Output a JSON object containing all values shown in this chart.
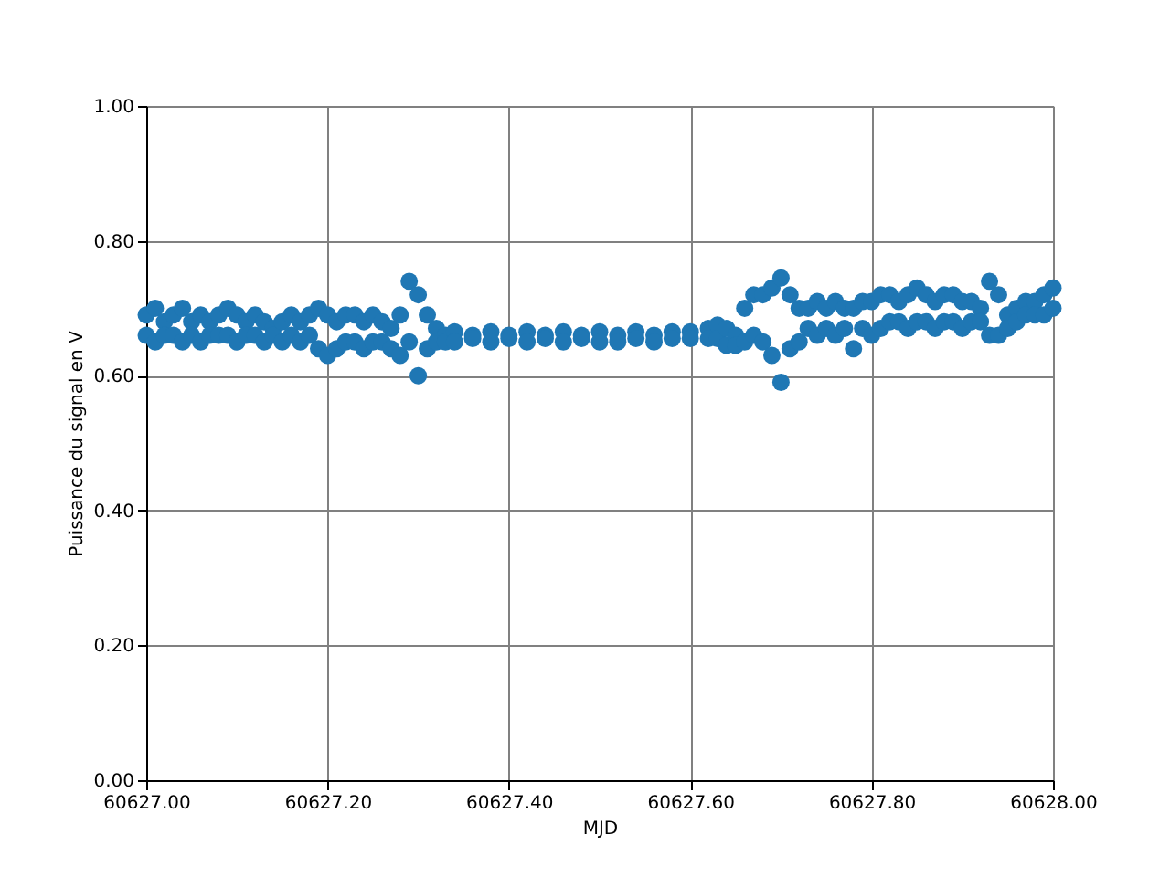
{
  "chart_data": {
    "type": "scatter",
    "xlabel": "MJD",
    "ylabel": "Puissance du signal en V",
    "marker": "circle",
    "grid": true,
    "xlim": [
      60627.0,
      60628.0
    ],
    "xticks": [
      {
        "value": 60627.0,
        "label": "60627.00"
      },
      {
        "value": 60627.2,
        "label": "60627.20"
      },
      {
        "value": 60627.4,
        "label": "60627.40"
      },
      {
        "value": 60627.6,
        "label": "60627.60"
      },
      {
        "value": 60627.8,
        "label": "60627.80"
      },
      {
        "value": 60628.0,
        "label": "60628.00"
      }
    ],
    "ylim": [
      0,
      1
    ],
    "yticks": [
      {
        "value": 0,
        "label": "0.00"
      },
      {
        "value": 0.2,
        "label": "0.20"
      },
      {
        "value": 0.4,
        "label": "0.40"
      },
      {
        "value": 0.6,
        "label": "0.60"
      },
      {
        "value": 0.8,
        "label": "0.80"
      },
      {
        "value": 1,
        "label": "1.00"
      }
    ],
    "series": [
      {
        "color": "#1f77b4",
        "x": [
          60627.0,
          60627.0,
          60627.01,
          60627.01,
          60627.02,
          60627.02,
          60627.03,
          60627.03,
          60627.04,
          60627.04,
          60627.05,
          60627.05,
          60627.06,
          60627.06,
          60627.07,
          60627.07,
          60627.08,
          60627.08,
          60627.09,
          60627.09,
          60627.1,
          60627.1,
          60627.11,
          60627.11,
          60627.12,
          60627.12,
          60627.13,
          60627.13,
          60627.14,
          60627.14,
          60627.15,
          60627.15,
          60627.16,
          60627.16,
          60627.17,
          60627.17,
          60627.18,
          60627.18,
          60627.19,
          60627.19,
          60627.2,
          60627.2,
          60627.21,
          60627.21,
          60627.22,
          60627.22,
          60627.23,
          60627.23,
          60627.24,
          60627.24,
          60627.25,
          60627.25,
          60627.26,
          60627.26,
          60627.27,
          60627.27,
          60627.28,
          60627.28,
          60627.29,
          60627.29,
          60627.3,
          60627.3,
          60627.31,
          60627.31,
          60627.32,
          60627.32,
          60627.33,
          60627.33,
          60627.34,
          60627.34,
          60627.36,
          60627.36,
          60627.38,
          60627.38,
          60627.4,
          60627.4,
          60627.42,
          60627.42,
          60627.44,
          60627.44,
          60627.46,
          60627.46,
          60627.48,
          60627.48,
          60627.5,
          60627.5,
          60627.52,
          60627.52,
          60627.54,
          60627.54,
          60627.56,
          60627.56,
          60627.58,
          60627.58,
          60627.6,
          60627.6,
          60627.62,
          60627.62,
          60627.63,
          60627.63,
          60627.64,
          60627.64,
          60627.65,
          60627.65,
          60627.66,
          60627.66,
          60627.67,
          60627.67,
          60627.68,
          60627.68,
          60627.69,
          60627.69,
          60627.7,
          60627.7,
          60627.71,
          60627.71,
          60627.72,
          60627.72,
          60627.73,
          60627.73,
          60627.74,
          60627.74,
          60627.75,
          60627.75,
          60627.76,
          60627.76,
          60627.77,
          60627.77,
          60627.78,
          60627.78,
          60627.79,
          60627.79,
          60627.8,
          60627.8,
          60627.81,
          60627.81,
          60627.82,
          60627.82,
          60627.83,
          60627.83,
          60627.84,
          60627.84,
          60627.85,
          60627.85,
          60627.86,
          60627.86,
          60627.87,
          60627.87,
          60627.88,
          60627.88,
          60627.89,
          60627.89,
          60627.9,
          60627.9,
          60627.91,
          60627.91,
          60627.92,
          60627.92,
          60627.93,
          60627.93,
          60627.94,
          60627.94,
          60627.95,
          60627.95,
          60627.96,
          60627.96,
          60627.97,
          60627.97,
          60627.98,
          60627.98,
          60627.99,
          60627.99,
          60628.0,
          60628.0
        ],
        "values": [
          0.69,
          0.66,
          0.7,
          0.65,
          0.68,
          0.66,
          0.69,
          0.66,
          0.7,
          0.65,
          0.68,
          0.66,
          0.69,
          0.65,
          0.68,
          0.66,
          0.69,
          0.66,
          0.7,
          0.66,
          0.69,
          0.65,
          0.68,
          0.66,
          0.69,
          0.66,
          0.68,
          0.65,
          0.67,
          0.66,
          0.68,
          0.65,
          0.69,
          0.66,
          0.68,
          0.65,
          0.69,
          0.66,
          0.7,
          0.64,
          0.69,
          0.63,
          0.68,
          0.64,
          0.69,
          0.65,
          0.69,
          0.65,
          0.68,
          0.64,
          0.69,
          0.65,
          0.68,
          0.65,
          0.67,
          0.64,
          0.69,
          0.63,
          0.74,
          0.65,
          0.72,
          0.6,
          0.69,
          0.64,
          0.67,
          0.65,
          0.66,
          0.65,
          0.665,
          0.65,
          0.66,
          0.655,
          0.665,
          0.65,
          0.66,
          0.655,
          0.665,
          0.65,
          0.66,
          0.655,
          0.665,
          0.65,
          0.66,
          0.655,
          0.665,
          0.65,
          0.66,
          0.65,
          0.665,
          0.655,
          0.66,
          0.65,
          0.665,
          0.655,
          0.665,
          0.655,
          0.67,
          0.655,
          0.675,
          0.655,
          0.67,
          0.645,
          0.66,
          0.645,
          0.7,
          0.65,
          0.72,
          0.66,
          0.72,
          0.65,
          0.73,
          0.63,
          0.745,
          0.59,
          0.72,
          0.64,
          0.7,
          0.65,
          0.7,
          0.67,
          0.71,
          0.66,
          0.7,
          0.67,
          0.71,
          0.66,
          0.7,
          0.67,
          0.7,
          0.64,
          0.71,
          0.67,
          0.71,
          0.66,
          0.72,
          0.67,
          0.72,
          0.68,
          0.71,
          0.68,
          0.72,
          0.67,
          0.73,
          0.68,
          0.72,
          0.68,
          0.71,
          0.67,
          0.72,
          0.68,
          0.72,
          0.68,
          0.71,
          0.67,
          0.71,
          0.68,
          0.7,
          0.68,
          0.74,
          0.66,
          0.72,
          0.66,
          0.69,
          0.67,
          0.7,
          0.68,
          0.71,
          0.69,
          0.71,
          0.69,
          0.72,
          0.69,
          0.73,
          0.7
        ]
      }
    ]
  }
}
